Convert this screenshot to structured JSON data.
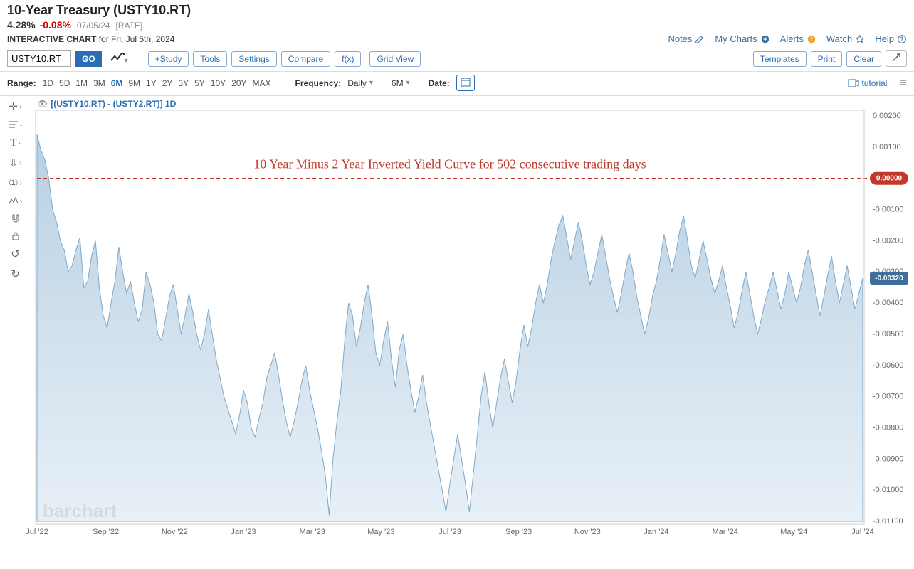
{
  "header": {
    "title": "10-Year Treasury (USTY10.RT)",
    "rate": "4.28%",
    "change": "-0.08%",
    "date": "07/05/24",
    "rate_suffix": "[RATE]",
    "interactive_label": "INTERACTIVE CHART",
    "interactive_for": "for Fri, Jul 5th, 2024"
  },
  "toplinks": {
    "notes": "Notes",
    "mycharts": "My Charts",
    "alerts": "Alerts",
    "watch": "Watch",
    "help": "Help"
  },
  "toolbar": {
    "symbol": "USTY10.RT",
    "go": "GO",
    "study": "+Study",
    "tools": "Tools",
    "settings": "Settings",
    "compare": "Compare",
    "fx": "f(x)",
    "gridview": "Grid View",
    "templates": "Templates",
    "print": "Print",
    "clear": "Clear"
  },
  "rangebar": {
    "label": "Range:",
    "items": [
      "1D",
      "5D",
      "1M",
      "3M",
      "6M",
      "9M",
      "1Y",
      "2Y",
      "3Y",
      "5Y",
      "10Y",
      "20Y",
      "MAX"
    ],
    "active": "6M",
    "freq_label": "Frequency:",
    "freq_value": "Daily",
    "period_value": "6M",
    "date_label": "Date:",
    "tutorial": "tutorial"
  },
  "chart": {
    "legend": "[(USTY10.RT) - (USTY2.RT)] 1D",
    "annotation": "10 Year Minus 2 Year Inverted Yield Curve for 502 consecutive trading days",
    "watermark": "barchart",
    "y_axis": {
      "min": -0.011,
      "max": 0.002,
      "ticks": [
        "0.00200",
        "0.00100",
        "0.00000",
        "-0.00100",
        "-0.00200",
        "-0.00300",
        "-0.00400",
        "-0.00500",
        "-0.00600",
        "-0.00700",
        "-0.00800",
        "-0.00900",
        "-0.01000",
        "-0.01100"
      ],
      "zero_label": "0.00000",
      "current_label": "-0.00320",
      "current_value": -0.0032
    },
    "x_axis": {
      "labels": [
        "Jul '22",
        "Sep '22",
        "Nov '22",
        "Jan '23",
        "Mar '23",
        "May '23",
        "Jul '23",
        "Sep '23",
        "Nov '23",
        "Jan '24",
        "Mar '24",
        "May '24",
        "Jul '24"
      ]
    },
    "colors": {
      "area_stroke": "#7fa8c9",
      "area_fill_top": "#b8d0e3",
      "area_fill_bottom": "#e8f0f7",
      "zero_line": "#c0392b",
      "annotation_text": "#c0392b",
      "current_badge": "#3d6e9c",
      "zero_badge": "#c0392b",
      "grid": "#eeeeee"
    },
    "series": [
      0.0014,
      0.0009,
      0.0006,
      0.0,
      -0.001,
      -0.0014,
      -0.002,
      -0.0023,
      -0.003,
      -0.0028,
      -0.0023,
      -0.0019,
      -0.0035,
      -0.0033,
      -0.0025,
      -0.002,
      -0.0035,
      -0.0044,
      -0.0048,
      -0.004,
      -0.0033,
      -0.0022,
      -0.003,
      -0.0037,
      -0.0033,
      -0.004,
      -0.0046,
      -0.0042,
      -0.003,
      -0.0034,
      -0.004,
      -0.005,
      -0.0052,
      -0.0045,
      -0.0038,
      -0.0034,
      -0.0042,
      -0.005,
      -0.0044,
      -0.0037,
      -0.0043,
      -0.005,
      -0.0055,
      -0.005,
      -0.0042,
      -0.005,
      -0.0058,
      -0.0064,
      -0.007,
      -0.0074,
      -0.0078,
      -0.0082,
      -0.0076,
      -0.0068,
      -0.0072,
      -0.008,
      -0.0083,
      -0.0077,
      -0.0072,
      -0.0064,
      -0.006,
      -0.0056,
      -0.0063,
      -0.0071,
      -0.0078,
      -0.0083,
      -0.0078,
      -0.0072,
      -0.0065,
      -0.006,
      -0.0068,
      -0.0074,
      -0.008,
      -0.0087,
      -0.0095,
      -0.0108,
      -0.009,
      -0.0078,
      -0.0068,
      -0.0052,
      -0.004,
      -0.0044,
      -0.0054,
      -0.0048,
      -0.004,
      -0.0034,
      -0.0044,
      -0.0056,
      -0.006,
      -0.0052,
      -0.0046,
      -0.0058,
      -0.0067,
      -0.0055,
      -0.005,
      -0.006,
      -0.0068,
      -0.0075,
      -0.007,
      -0.0063,
      -0.0072,
      -0.0079,
      -0.0086,
      -0.0093,
      -0.01,
      -0.0107,
      -0.0098,
      -0.009,
      -0.0082,
      -0.009,
      -0.0098,
      -0.0107,
      -0.0095,
      -0.0083,
      -0.007,
      -0.0062,
      -0.0072,
      -0.008,
      -0.0072,
      -0.0064,
      -0.0058,
      -0.0065,
      -0.0072,
      -0.0065,
      -0.0055,
      -0.0047,
      -0.0054,
      -0.0048,
      -0.004,
      -0.0034,
      -0.004,
      -0.0034,
      -0.0026,
      -0.002,
      -0.0015,
      -0.0012,
      -0.0019,
      -0.0026,
      -0.002,
      -0.0014,
      -0.002,
      -0.0028,
      -0.0034,
      -0.003,
      -0.0024,
      -0.0018,
      -0.0025,
      -0.0032,
      -0.0038,
      -0.0043,
      -0.0037,
      -0.003,
      -0.0024,
      -0.003,
      -0.0038,
      -0.0044,
      -0.005,
      -0.0045,
      -0.0038,
      -0.0033,
      -0.0026,
      -0.0018,
      -0.0024,
      -0.003,
      -0.0024,
      -0.0017,
      -0.0012,
      -0.002,
      -0.0028,
      -0.0032,
      -0.0026,
      -0.002,
      -0.0026,
      -0.0032,
      -0.0037,
      -0.0033,
      -0.0028,
      -0.0035,
      -0.0041,
      -0.0048,
      -0.0043,
      -0.0036,
      -0.003,
      -0.0037,
      -0.0044,
      -0.005,
      -0.0045,
      -0.0039,
      -0.0035,
      -0.003,
      -0.0036,
      -0.0042,
      -0.0037,
      -0.003,
      -0.0035,
      -0.004,
      -0.0035,
      -0.0028,
      -0.0023,
      -0.003,
      -0.0037,
      -0.0044,
      -0.0038,
      -0.0031,
      -0.0025,
      -0.0033,
      -0.004,
      -0.0034,
      -0.0028,
      -0.0035,
      -0.0042,
      -0.0037,
      -0.0032
    ]
  }
}
